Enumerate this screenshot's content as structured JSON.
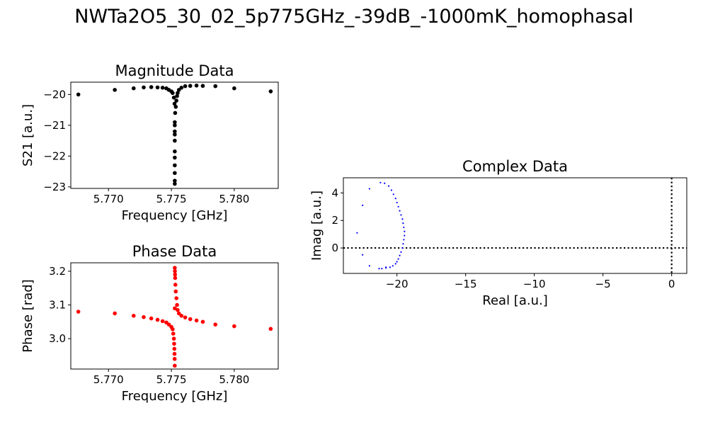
{
  "figure": {
    "title": "NWTa2O5_30_02_5p775GHz_-39dB_-1000mK_homophasal"
  },
  "chart_data": [
    {
      "id": "magnitude",
      "type": "scatter",
      "title": "Magnitude Data",
      "xlabel": "Frequency [GHz]",
      "ylabel": "S21 [a.u.]",
      "xlim": [
        5.767,
        5.7835
      ],
      "ylim": [
        -23.05,
        -19.6
      ],
      "xticks": [
        5.77,
        5.775,
        5.78
      ],
      "xtick_labels": [
        "5.770",
        "5.775",
        "5.780"
      ],
      "yticks": [
        -23,
        -22,
        -21,
        -20
      ],
      "ytick_labels": [
        "−23",
        "−22",
        "−21",
        "−20"
      ],
      "color": "#000000",
      "x": [
        5.7676,
        5.7705,
        5.772,
        5.7728,
        5.7734,
        5.7739,
        5.7743,
        5.7746,
        5.7748,
        5.775,
        5.7751,
        5.7752,
        5.77525,
        5.7753,
        5.77535,
        5.7754,
        5.77545,
        5.7755,
        5.7756,
        5.7758,
        5.7761,
        5.7765,
        5.777,
        5.7775,
        5.7785,
        5.78,
        5.7829,
        5.77527,
        5.77527,
        5.77527,
        5.77527,
        5.77527,
        5.77527,
        5.77527,
        5.77527,
        5.77527,
        5.77527,
        5.77527
      ],
      "y": [
        -20.0,
        -19.85,
        -19.8,
        -19.77,
        -19.76,
        -19.77,
        -19.78,
        -19.8,
        -19.85,
        -19.9,
        -19.95,
        -20.1,
        -20.3,
        -20.6,
        -20.4,
        -20.2,
        -20.05,
        -19.95,
        -19.85,
        -19.78,
        -19.73,
        -19.72,
        -19.71,
        -19.72,
        -19.73,
        -19.8,
        -19.9,
        -21.0,
        -21.3,
        -21.5,
        -21.85,
        -22.05,
        -22.3,
        -22.55,
        -22.8,
        -22.9,
        -20.9,
        -21.2
      ]
    },
    {
      "id": "phase",
      "type": "scatter",
      "title": "Phase Data",
      "xlabel": "Frequency [GHz]",
      "ylabel": "Phase [rad]",
      "xlim": [
        5.767,
        5.7835
      ],
      "ylim": [
        2.91,
        3.225
      ],
      "xticks": [
        5.77,
        5.775,
        5.78
      ],
      "xtick_labels": [
        "5.770",
        "5.775",
        "5.780"
      ],
      "yticks": [
        3.0,
        3.1,
        3.2
      ],
      "ytick_labels": [
        "3.0",
        "3.1",
        "3.2"
      ],
      "color": "#ff0000",
      "x": [
        5.7676,
        5.7705,
        5.772,
        5.7728,
        5.7734,
        5.7739,
        5.7743,
        5.7746,
        5.7748,
        5.775,
        5.7751,
        5.77515,
        5.7752,
        5.77522,
        5.77524,
        5.77525,
        5.77526,
        5.77527,
        5.77527,
        5.77527,
        5.77528,
        5.77529,
        5.7753,
        5.77532,
        5.77535,
        5.7754,
        5.77545,
        5.7755,
        5.7756,
        5.7758,
        5.7761,
        5.7765,
        5.777,
        5.7775,
        5.7785,
        5.78,
        5.7829
      ],
      "y": [
        3.08,
        3.075,
        3.068,
        3.064,
        3.06,
        3.056,
        3.052,
        3.048,
        3.042,
        3.035,
        3.028,
        3.015,
        3.0,
        2.985,
        2.97,
        2.955,
        2.94,
        2.92,
        3.09,
        3.21,
        3.2,
        3.19,
        3.18,
        3.16,
        3.14,
        3.12,
        3.1,
        3.085,
        3.075,
        3.068,
        3.063,
        3.058,
        3.054,
        3.05,
        3.042,
        3.037,
        3.029
      ]
    },
    {
      "id": "complex",
      "type": "scatter",
      "title": "Complex Data",
      "xlabel": "Real [a.u.]",
      "ylabel": "Imag [a.u.]",
      "xlim": [
        -23.9,
        1.1
      ],
      "ylim": [
        -1.85,
        5.1
      ],
      "xticks": [
        -20,
        -15,
        -10,
        -5,
        0
      ],
      "xtick_labels": [
        "−20",
        "−15",
        "−10",
        "−5",
        "0"
      ],
      "yticks": [
        0,
        2,
        4
      ],
      "ytick_labels": [
        "0",
        "2",
        "4"
      ],
      "color": "#0000ff",
      "reference_lines": {
        "x": 0,
        "y": 0
      },
      "x": [
        -22.9,
        -22.5,
        -22.5,
        -22.0,
        -22.0,
        -21.2,
        -21.3,
        -20.9,
        -20.8,
        -20.6,
        -20.4,
        -20.25,
        -20.1,
        -20.0,
        -19.9,
        -19.8,
        -19.7,
        -19.6,
        -19.55,
        -19.5,
        -19.45,
        -19.45,
        -19.5,
        -19.55,
        -19.6,
        -19.7,
        -19.8,
        -19.9,
        -20.0,
        -20.1,
        -20.3,
        -20.5,
        -20.8,
        -21.1
      ],
      "y": [
        1.1,
        -0.5,
        3.1,
        -1.3,
        4.3,
        4.75,
        -1.5,
        4.7,
        -1.4,
        4.5,
        4.2,
        3.9,
        3.6,
        3.3,
        3.0,
        2.7,
        2.4,
        2.1,
        1.8,
        1.5,
        1.2,
        0.9,
        0.6,
        0.3,
        0.0,
        -0.3,
        -0.55,
        -0.8,
        -1.0,
        -1.15,
        -1.3,
        -1.4,
        -1.45,
        -1.5
      ]
    }
  ]
}
